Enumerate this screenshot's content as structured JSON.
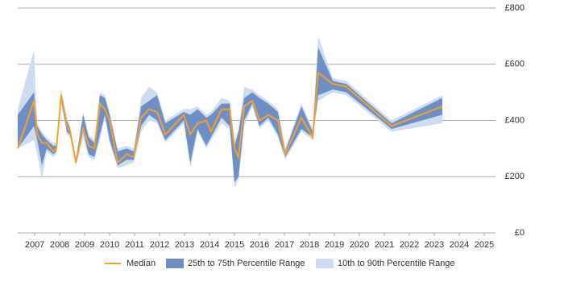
{
  "chart_data": {
    "type": "percentile-band-line",
    "x": [
      2006.32,
      2006.97,
      2007.1,
      2007.29,
      2007.48,
      2007.74,
      2007.87,
      2008.06,
      2008.29,
      2008.42,
      2008.65,
      2008.94,
      2009.16,
      2009.39,
      2009.61,
      2009.81,
      2010.0,
      2010.32,
      2010.68,
      2010.97,
      2011.26,
      2011.58,
      2011.9,
      2012.23,
      2012.97,
      2013.23,
      2013.52,
      2013.87,
      2014.06,
      2014.48,
      2014.81,
      2015.0,
      2015.16,
      2015.39,
      2015.71,
      2016.0,
      2016.35,
      2016.74,
      2017.03,
      2017.68,
      2018.13,
      2018.35,
      2018.94,
      2019.48,
      2021.29,
      2023.32
    ],
    "series": [
      {
        "name": "10th to 90th Percentile Range",
        "color": "#cddcf0",
        "low": [
          300,
          330,
          280,
          190,
          290,
          270,
          280,
          460,
          350,
          340,
          240,
          340,
          270,
          260,
          330,
          410,
          320,
          230,
          240,
          250,
          360,
          400,
          390,
          320,
          390,
          230,
          360,
          300,
          330,
          390,
          370,
          160,
          190,
          380,
          450,
          370,
          400,
          340,
          260,
          360,
          330,
          470,
          500,
          490,
          360,
          390
        ],
        "high": [
          440,
          650,
          390,
          360,
          340,
          320,
          320,
          510,
          410,
          380,
          270,
          430,
          350,
          330,
          500,
          490,
          430,
          300,
          310,
          300,
          480,
          520,
          500,
          400,
          440,
          440,
          450,
          420,
          430,
          480,
          470,
          330,
          370,
          520,
          510,
          490,
          470,
          440,
          300,
          460,
          370,
          700,
          550,
          540,
          400,
          490
        ]
      },
      {
        "name": "25th to 75th Percentile Range",
        "color": "#6f8fc4",
        "low": [
          300,
          380,
          330,
          240,
          300,
          280,
          290,
          470,
          360,
          350,
          250,
          360,
          280,
          270,
          350,
          420,
          330,
          240,
          260,
          260,
          380,
          420,
          400,
          330,
          400,
          250,
          370,
          310,
          340,
          410,
          380,
          180,
          200,
          400,
          460,
          380,
          410,
          350,
          270,
          370,
          340,
          490,
          510,
          500,
          370,
          420
        ],
        "high": [
          420,
          500,
          380,
          350,
          330,
          310,
          310,
          500,
          400,
          370,
          260,
          420,
          340,
          320,
          490,
          480,
          420,
          290,
          300,
          290,
          450,
          470,
          490,
          390,
          430,
          420,
          440,
          410,
          420,
          460,
          460,
          310,
          360,
          480,
          500,
          480,
          460,
          430,
          290,
          450,
          360,
          660,
          540,
          530,
          390,
          480
        ]
      },
      {
        "name": "Median",
        "color": "#f0a030",
        "values": [
          300,
          470,
          350,
          320,
          320,
          290,
          300,
          490,
          380,
          360,
          250,
          370,
          310,
          300,
          460,
          440,
          400,
          250,
          280,
          270,
          410,
          440,
          430,
          350,
          420,
          350,
          390,
          400,
          360,
          440,
          440,
          300,
          270,
          450,
          470,
          400,
          420,
          400,
          280,
          410,
          340,
          570,
          530,
          520,
          380,
          450
        ]
      }
    ],
    "xlim": [
      2006.32,
      2025.45
    ],
    "xticks": [
      2007,
      2008,
      2009,
      2010,
      2011,
      2012,
      2013,
      2014,
      2015,
      2016,
      2017,
      2018,
      2019,
      2020,
      2021,
      2022,
      2023,
      2024,
      2025
    ],
    "ylim": [
      0,
      800
    ],
    "yticks": [
      {
        "value": 0,
        "label": "£0"
      },
      {
        "value": 200,
        "label": "£200"
      },
      {
        "value": 400,
        "label": "£400"
      },
      {
        "value": 600,
        "label": "£600"
      },
      {
        "value": 800,
        "label": "£800"
      }
    ],
    "grid": true
  }
}
